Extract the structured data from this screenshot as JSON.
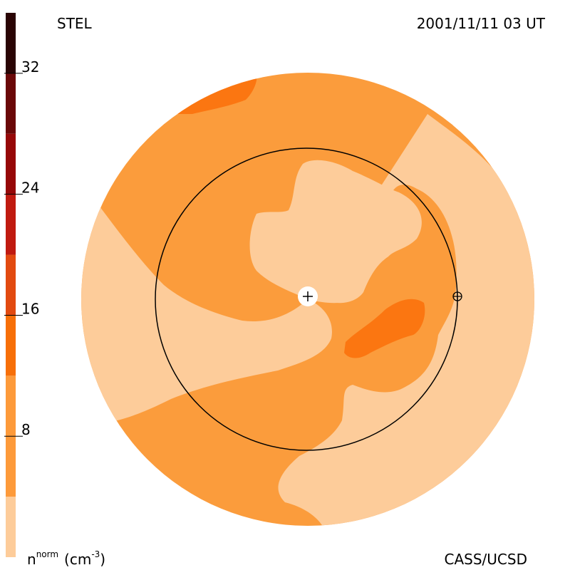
{
  "header": {
    "left_label": "STEL",
    "right_label": "2001/11/11 03 UT"
  },
  "footer": {
    "left_label": "n",
    "left_label_sup": "norm",
    "left_label_unit": "(cm",
    "left_label_unit_sup": "-3",
    "left_label_unit_close": ")",
    "right_label": "CASS/UCSD"
  },
  "chart_data": {
    "type": "heatmap",
    "colorbar": {
      "range": [
        0,
        36
      ],
      "ticks": [
        8,
        16,
        24,
        32
      ],
      "tick_labels": [
        "8",
        "16",
        "24",
        "32"
      ],
      "bands": [
        {
          "from": 0,
          "to": 4,
          "color": "#fdcc9a"
        },
        {
          "from": 4,
          "to": 12,
          "color": "#fd9a3a"
        },
        {
          "from": 12,
          "to": 16,
          "color": "#f76f08"
        },
        {
          "from": 16,
          "to": 20,
          "color": "#e24a10"
        },
        {
          "from": 20,
          "to": 24,
          "color": "#c01a10"
        },
        {
          "from": 24,
          "to": 28,
          "color": "#960808"
        },
        {
          "from": 28,
          "to": 32,
          "color": "#6a0808"
        },
        {
          "from": 32,
          "to": 36,
          "color": "#2a0404"
        }
      ]
    },
    "field_colors": {
      "low": "#fdcc9a",
      "mid": "#fb9c3c",
      "high": "#fb7611"
    },
    "markers": {
      "sun": "sun-marker",
      "earth": "earth-marker"
    }
  }
}
